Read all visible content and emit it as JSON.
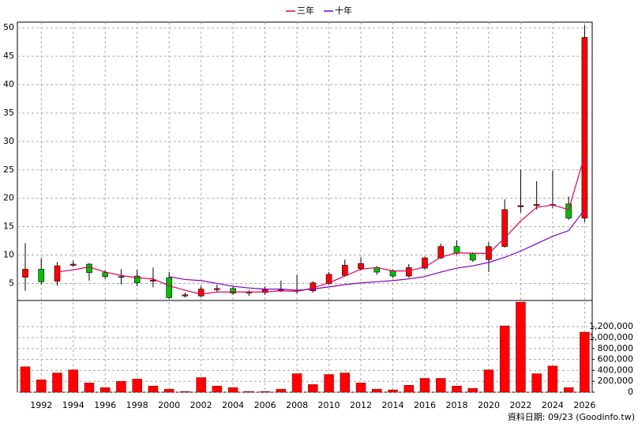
{
  "chart_data": {
    "type": "candlestick",
    "categories": [
      null,
      "1992",
      null,
      "1994",
      null,
      "1996",
      null,
      "1998",
      null,
      "2000",
      null,
      "2002",
      null,
      "2004",
      null,
      "2006",
      null,
      "2008",
      null,
      "2010",
      null,
      "2012",
      null,
      "2014",
      null,
      "2016",
      null,
      "2018",
      null,
      "2020",
      null,
      "2022",
      null,
      "2024",
      null,
      "2026"
    ],
    "open": [
      6.1,
      7.5,
      5.4,
      8.2,
      8.4,
      6.9,
      6.2,
      6.3,
      5.4,
      6.0,
      2.8,
      2.8,
      3.9,
      4.1,
      3.3,
      3.4,
      3.8,
      3.8,
      3.7,
      5.0,
      6.4,
      7.6,
      7.8,
      7.2,
      6.3,
      7.7,
      9.5,
      11.5,
      10.3,
      9.2,
      11.5,
      18.5,
      18.7,
      18.8,
      19.0,
      16.5
    ],
    "high": [
      12.1,
      9.5,
      8.8,
      9.0,
      8.6,
      7.3,
      7.5,
      7.4,
      7.8,
      7.0,
      3.4,
      4.6,
      4.8,
      4.5,
      3.8,
      4.5,
      5.5,
      6.5,
      5.4,
      7.0,
      9.2,
      9.6,
      8.1,
      7.5,
      8.4,
      9.7,
      12.0,
      12.6,
      10.5,
      12.3,
      19.8,
      25.0,
      23.0,
      24.8,
      20.3,
      50.5
    ],
    "low": [
      3.7,
      4.8,
      4.6,
      7.9,
      5.5,
      5.8,
      4.8,
      4.5,
      4.3,
      2.3,
      2.5,
      2.6,
      3.4,
      3.0,
      2.8,
      3.0,
      3.5,
      3.2,
      3.4,
      4.7,
      6.2,
      7.3,
      6.5,
      6.0,
      6.0,
      7.5,
      9.3,
      10.0,
      8.8,
      7.0,
      11.3,
      17.5,
      18.0,
      18.3,
      16.2,
      15.8
    ],
    "close": [
      7.5,
      5.3,
      8.1,
      8.4,
      6.9,
      6.2,
      6.1,
      5.1,
      5.6,
      2.5,
      3.0,
      4.0,
      4.1,
      3.3,
      3.5,
      3.9,
      3.9,
      3.7,
      5.1,
      6.6,
      8.2,
      8.5,
      7.0,
      6.3,
      7.8,
      9.5,
      11.5,
      10.3,
      9.1,
      11.5,
      18.0,
      18.7,
      18.9,
      18.9,
      16.5,
      48.3
    ],
    "up_color": "#ff0000",
    "down_color": "#00c000",
    "series": [
      {
        "name": "三年",
        "color": "#e0005a",
        "values": [
          null,
          null,
          7.0,
          7.4,
          7.9,
          7.0,
          6.4,
          6.0,
          5.8,
          4.6,
          3.8,
          3.1,
          3.5,
          3.5,
          3.5,
          3.5,
          3.7,
          3.6,
          4.2,
          5.1,
          6.3,
          7.5,
          7.8,
          7.2,
          7.2,
          7.9,
          9.6,
          10.4,
          10.3,
          10.3,
          13.0,
          16.0,
          18.4,
          18.8,
          18.0,
          27.5
        ]
      },
      {
        "name": "十年",
        "color": "#8000c0",
        "values": [
          null,
          null,
          null,
          null,
          null,
          null,
          null,
          null,
          null,
          6.2,
          5.7,
          5.5,
          5.0,
          4.5,
          4.2,
          4.0,
          4.0,
          3.8,
          4.0,
          4.4,
          4.8,
          5.1,
          5.3,
          5.5,
          5.8,
          6.2,
          7.0,
          7.7,
          8.1,
          8.7,
          9.6,
          10.7,
          12.0,
          13.3,
          14.3,
          18.0
        ]
      }
    ],
    "ylim": [
      2,
      51
    ],
    "yticks": [
      5,
      10,
      15,
      20,
      25,
      30,
      35,
      40,
      45,
      50
    ],
    "grid": true,
    "volume": {
      "color": "#ff0000",
      "values": [
        466000,
        226000,
        353000,
        410000,
        170000,
        85000,
        198000,
        240000,
        113000,
        56000,
        14000,
        268000,
        113000,
        85000,
        14000,
        14000,
        56000,
        339000,
        141000,
        325000,
        353000,
        170000,
        56000,
        42000,
        127000,
        254000,
        254000,
        113000,
        71000,
        410000,
        1215000,
        1650000,
        339000,
        480000,
        85000,
        1100000
      ],
      "ylim": [
        0,
        1680000
      ],
      "yticks": [
        0,
        {
          "value": 200000,
          "label": "200,000"
        },
        {
          "value": 400000,
          "label": "400,000"
        },
        {
          "value": 600000,
          "label": "600,000"
        },
        {
          "value": 800000,
          "label": "800,000"
        },
        {
          "value": 1000000,
          "label": "1,000,000"
        },
        {
          "value": 1200000,
          "label": "1,200,000"
        }
      ]
    },
    "source": "資料日期: 09/23 (Goodinfo.tw)"
  }
}
